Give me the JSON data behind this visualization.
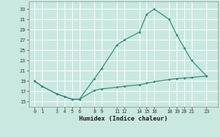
{
  "xlabel": "Humidex (Indice chaleur)",
  "line1_x": [
    0,
    1,
    3,
    4,
    5,
    6,
    8,
    9,
    11,
    12,
    14,
    15,
    16,
    18,
    19,
    20,
    21,
    23
  ],
  "line1_y": [
    19,
    18,
    16.5,
    16,
    15.5,
    15.5,
    19.5,
    21.5,
    26,
    27,
    28.5,
    32,
    33,
    31,
    28,
    25.5,
    23,
    20
  ],
  "line2_x": [
    0,
    1,
    3,
    4,
    5,
    6,
    8,
    9,
    11,
    12,
    14,
    15,
    16,
    18,
    19,
    20,
    21,
    23
  ],
  "line2_y": [
    19,
    18,
    16.5,
    16,
    15.5,
    15.5,
    17.2,
    17.5,
    17.8,
    18.0,
    18.3,
    18.6,
    18.9,
    19.3,
    19.5,
    19.6,
    19.7,
    20
  ],
  "line_color": "#2e8b7a",
  "bg_color": "#c8e8e0",
  "grid_color": "#b0d8d0",
  "yticks": [
    15,
    17,
    19,
    21,
    23,
    25,
    27,
    29,
    31,
    33
  ],
  "xticks": [
    0,
    1,
    3,
    4,
    5,
    6,
    8,
    9,
    11,
    12,
    14,
    15,
    16,
    18,
    19,
    20,
    21,
    23
  ],
  "ylim": [
    14.0,
    34.5
  ],
  "xlim": [
    -0.8,
    24.5
  ]
}
